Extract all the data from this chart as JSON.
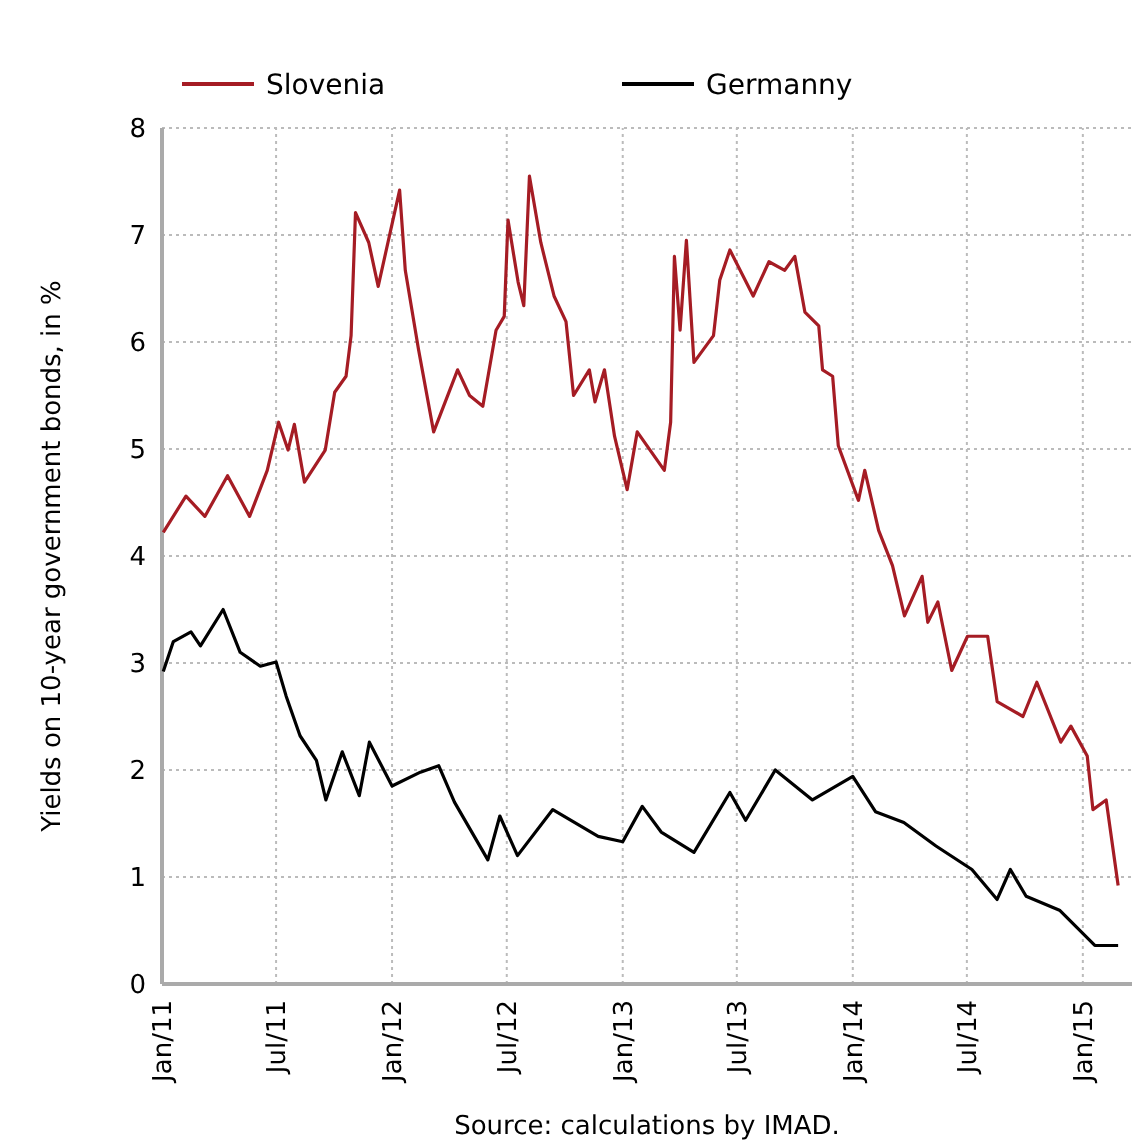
{
  "chart_data": {
    "type": "line",
    "ylabel": "Yields on 10-year government bonds, in %",
    "annotations": [
      "Source: calculations by IMAD."
    ],
    "xlim": [
      "2011-01-01",
      "2015-03-20"
    ],
    "xticks": [
      {
        "value": "2011-01-01",
        "label": "Jan/11"
      },
      {
        "value": "2011-07-01",
        "label": "Jul/11"
      },
      {
        "value": "2012-01-01",
        "label": "Jan/12"
      },
      {
        "value": "2012-07-01",
        "label": "Jul/12"
      },
      {
        "value": "2013-01-01",
        "label": "Jan/13"
      },
      {
        "value": "2013-07-01",
        "label": "Jul/13"
      },
      {
        "value": "2014-01-01",
        "label": "Jan/14"
      },
      {
        "value": "2014-07-01",
        "label": "Jul/14"
      },
      {
        "value": "2015-01-01",
        "label": "Jan/15"
      }
    ],
    "ylim": [
      0,
      8
    ],
    "yticks": [
      0,
      1,
      2,
      3,
      4,
      5,
      6,
      7,
      8
    ],
    "grid": true,
    "legend": "top",
    "line_style": "solid",
    "marker": "none",
    "series": [
      {
        "name": "Slovenia",
        "color": "#a51c24",
        "x": [
          "2011-01-03",
          "2011-02-08",
          "2011-03-10",
          "2011-04-15",
          "2011-05-20",
          "2011-06-17",
          "2011-07-05",
          "2011-07-20",
          "2011-07-30",
          "2011-08-15",
          "2011-09-17",
          "2011-10-02",
          "2011-10-20",
          "2011-10-28",
          "2011-11-04",
          "2011-11-25",
          "2011-12-10",
          "2012-01-13",
          "2012-01-22",
          "2012-02-12",
          "2012-03-07",
          "2012-04-14",
          "2012-05-03",
          "2012-05-24",
          "2012-06-14",
          "2012-06-27",
          "2012-07-03",
          "2012-07-19",
          "2012-07-28",
          "2012-08-06",
          "2012-08-24",
          "2012-09-14",
          "2012-10-03",
          "2012-10-15",
          "2012-11-09",
          "2012-11-18",
          "2012-12-03",
          "2012-12-19",
          "2013-01-08",
          "2013-01-24",
          "2013-03-08",
          "2013-03-18",
          "2013-03-24",
          "2013-04-02",
          "2013-04-12",
          "2013-04-24",
          "2013-05-25",
          "2013-06-04",
          "2013-06-20",
          "2013-07-27",
          "2013-08-21",
          "2013-09-15",
          "2013-10-01",
          "2013-10-17",
          "2013-11-08",
          "2013-11-14",
          "2013-11-30",
          "2013-12-09",
          "2014-01-10",
          "2014-01-20",
          "2014-02-11",
          "2014-03-05",
          "2014-03-24",
          "2014-04-21",
          "2014-04-30",
          "2014-05-16",
          "2014-06-07",
          "2014-07-02",
          "2014-08-03",
          "2014-08-18",
          "2014-09-28",
          "2014-10-20",
          "2014-11-27",
          "2014-12-13",
          "2015-01-08",
          "2015-01-17",
          "2015-02-07",
          "2015-02-26"
        ],
        "values": [
          4.22,
          4.56,
          4.37,
          4.75,
          4.37,
          4.8,
          5.25,
          4.99,
          5.23,
          4.69,
          4.99,
          5.53,
          5.68,
          6.06,
          7.21,
          6.93,
          6.52,
          7.42,
          6.67,
          5.93,
          5.16,
          5.74,
          5.5,
          5.4,
          6.11,
          6.24,
          7.14,
          6.56,
          6.34,
          7.55,
          6.93,
          6.43,
          6.19,
          5.5,
          5.74,
          5.44,
          5.74,
          5.12,
          4.62,
          5.16,
          4.8,
          5.25,
          6.8,
          6.11,
          6.95,
          5.81,
          6.06,
          6.58,
          6.86,
          6.43,
          6.75,
          6.67,
          6.8,
          6.28,
          6.15,
          5.74,
          5.68,
          5.03,
          4.52,
          4.8,
          4.24,
          3.91,
          3.44,
          3.81,
          3.38,
          3.57,
          2.93,
          3.25,
          3.25,
          2.64,
          2.5,
          2.82,
          2.26,
          2.41,
          2.13,
          1.63,
          1.72,
          0.92
        ]
      },
      {
        "name": "Germanny",
        "color": "#000000",
        "x": [
          "2011-01-03",
          "2011-01-19",
          "2011-02-16",
          "2011-03-03",
          "2011-04-08",
          "2011-05-05",
          "2011-06-06",
          "2011-07-01",
          "2011-07-17",
          "2011-08-08",
          "2011-09-03",
          "2011-09-18",
          "2011-10-14",
          "2011-11-10",
          "2011-11-26",
          "2012-01-01",
          "2012-02-15",
          "2012-03-15",
          "2012-04-09",
          "2012-06-01",
          "2012-06-20",
          "2012-07-18",
          "2012-09-12",
          "2012-11-23",
          "2013-01-01",
          "2013-02-01",
          "2013-03-03",
          "2013-04-24",
          "2013-06-20",
          "2013-07-15",
          "2013-08-31",
          "2013-10-29",
          "2014-01-01",
          "2014-02-06",
          "2014-03-23",
          "2014-05-13",
          "2014-07-09",
          "2014-08-18",
          "2014-09-08",
          "2014-10-03",
          "2014-11-25",
          "2015-01-20",
          "2015-02-26"
        ],
        "values": [
          2.92,
          3.2,
          3.29,
          3.16,
          3.5,
          3.1,
          2.97,
          3.01,
          2.69,
          2.32,
          2.09,
          1.72,
          2.17,
          1.76,
          2.26,
          1.85,
          1.98,
          2.04,
          1.7,
          1.16,
          1.57,
          1.2,
          1.63,
          1.38,
          1.33,
          1.66,
          1.42,
          1.23,
          1.79,
          1.53,
          2.0,
          1.72,
          1.94,
          1.61,
          1.51,
          1.29,
          1.07,
          0.79,
          1.07,
          0.82,
          0.69,
          0.36,
          0.36
        ]
      }
    ]
  }
}
